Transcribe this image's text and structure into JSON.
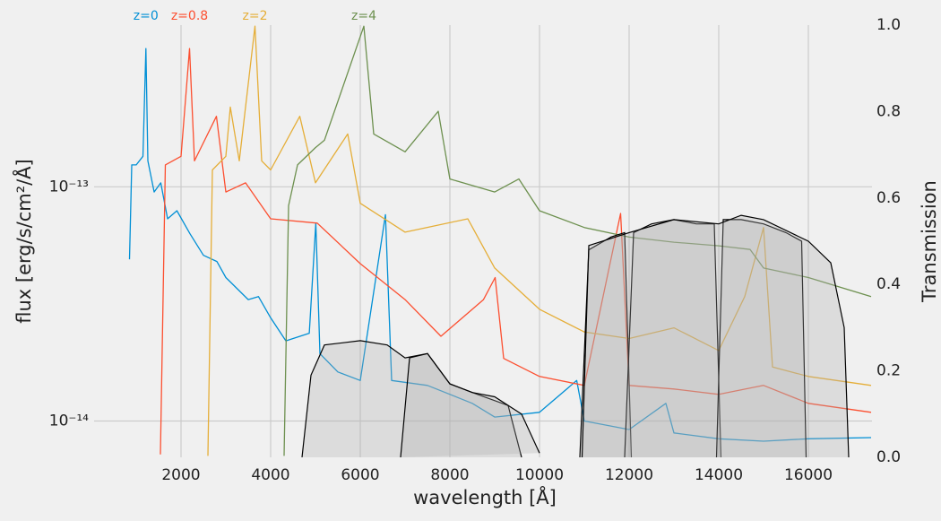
{
  "chart_data": {
    "type": "line",
    "yscale": "log",
    "grid": true,
    "xlabel": "wavelength [Å]",
    "ylabel": "flux [erg/s/cm²/Å]",
    "y2label": "Transmission",
    "xlim": [
      60,
      17420
    ],
    "ylim": [
      7e-15,
      4.9e-13
    ],
    "y2lim": [
      0,
      1
    ],
    "xticks": [
      2000,
      4000,
      6000,
      8000,
      10000,
      12000,
      14000,
      16000
    ],
    "yticks": [
      {
        "value": 1e-14,
        "label": "10⁻¹⁴"
      },
      {
        "value": 1e-13,
        "label": "10⁻¹³"
      }
    ],
    "y2ticks": [
      {
        "value": 0,
        "label": "0.0"
      },
      0.2,
      0.4,
      0.6,
      0.8,
      {
        "value": 1,
        "label": "1.0"
      }
    ],
    "series": [
      {
        "name": "z=0",
        "color": "#008fd5",
        "x": [
          850,
          900,
          1000,
          1150,
          1216,
          1260,
          1400,
          1549,
          1700,
          1909,
          2200,
          2500,
          2800,
          3000,
          3500,
          3727,
          4000,
          4340,
          4861,
          5007,
          5100,
          5500,
          6000,
          6563,
          6700,
          7500,
          8500,
          9000,
          10000,
          10830,
          11000,
          12000,
          12820,
          13000,
          14000,
          15000,
          16000,
          17400
        ],
        "values": [
          4.9e-14,
          1.24e-13,
          1.24e-13,
          1.35e-13,
          3.89e-13,
          1.29e-13,
          9.5e-14,
          1.04e-13,
          7.3e-14,
          7.9e-14,
          6.3e-14,
          5.1e-14,
          4.8e-14,
          4.1e-14,
          3.3e-14,
          3.4e-14,
          2.76e-14,
          2.2e-14,
          2.37e-14,
          7e-14,
          1.94e-14,
          1.62e-14,
          1.49e-14,
          7.6e-14,
          1.49e-14,
          1.42e-14,
          1.19e-14,
          1.04e-14,
          1.09e-14,
          1.49e-14,
          1e-14,
          9.2e-15,
          1.19e-14,
          8.9e-15,
          8.4e-15,
          8.2e-15,
          8.4e-15,
          8.5e-15
        ]
      },
      {
        "name": "z=0.8",
        "color": "#fc4f30",
        "x": [
          1540,
          1650,
          2000,
          2190,
          2300,
          2790,
          3000,
          3440,
          4000,
          5040,
          6000,
          7000,
          7800,
          8750,
          9010,
          9200,
          10000,
          11000,
          11810,
          12000,
          13000,
          14000,
          15000,
          16000,
          17400
        ],
        "values": [
          7.2e-15,
          1.24e-13,
          1.35e-13,
          3.89e-13,
          1.29e-13,
          2e-13,
          9.5e-14,
          1.04e-13,
          7.3e-14,
          7e-14,
          4.7e-14,
          3.3e-14,
          2.3e-14,
          3.3e-14,
          4.1e-14,
          1.85e-14,
          1.55e-14,
          1.42e-14,
          7.7e-14,
          1.42e-14,
          1.37e-14,
          1.3e-14,
          1.42e-14,
          1.19e-14,
          1.09e-14
        ]
      },
      {
        "name": "z=2",
        "color": "#e5ae38",
        "x": [
          2600,
          2700,
          3000,
          3100,
          3300,
          3650,
          3800,
          4000,
          4650,
          5000,
          5720,
          6000,
          7000,
          8400,
          9000,
          10000,
          11000,
          12000,
          13000,
          14000,
          14580,
          15000,
          15200,
          16000,
          17400
        ],
        "values": [
          7.1e-15,
          1.18e-13,
          1.35e-13,
          2.19e-13,
          1.29e-13,
          4.85e-13,
          1.29e-13,
          1.18e-13,
          2e-13,
          1.04e-13,
          1.68e-13,
          8.5e-14,
          6.4e-14,
          7.3e-14,
          4.5e-14,
          3e-14,
          2.4e-14,
          2.25e-14,
          2.5e-14,
          2e-14,
          3.4e-14,
          6.7e-14,
          1.7e-14,
          1.55e-14,
          1.42e-14
        ]
      },
      {
        "name": "z=4",
        "color": "#6d904f",
        "x": [
          4300,
          4400,
          4600,
          5000,
          5200,
          6080,
          6300,
          7000,
          7740,
          8000,
          9000,
          9540,
          10000,
          11000,
          12000,
          13000,
          14000,
          14700,
          15000,
          16000,
          17400
        ],
        "values": [
          7.1e-15,
          8.3e-14,
          1.24e-13,
          1.47e-13,
          1.58e-13,
          4.85e-13,
          1.68e-13,
          1.41e-13,
          2.1e-13,
          1.08e-13,
          9.5e-14,
          1.08e-13,
          7.9e-14,
          6.7e-14,
          6.1e-14,
          5.8e-14,
          5.6e-14,
          5.4e-14,
          4.5e-14,
          4.1e-14,
          3.4e-14
        ]
      },
      {
        "axis": "y2",
        "color": "#000000",
        "x": [
          4700,
          4900,
          5200,
          6000,
          6600,
          7000,
          7500,
          8000,
          8500,
          9300,
          9600
        ],
        "values": [
          0,
          0.19,
          0.26,
          0.27,
          0.26,
          0.23,
          0.24,
          0.17,
          0.15,
          0.12,
          0
        ]
      },
      {
        "axis": "y2",
        "color": "#000000",
        "x": [
          6900,
          7100,
          7500,
          8000,
          8500,
          9000,
          9600,
          10000
        ],
        "values": [
          0,
          0.23,
          0.24,
          0.17,
          0.15,
          0.14,
          0.1,
          0.01
        ]
      },
      {
        "axis": "y2",
        "color": "#000000",
        "x": [
          10900,
          11100,
          11600,
          11900,
          12050
        ],
        "values": [
          0,
          0.48,
          0.51,
          0.52,
          0
        ]
      },
      {
        "axis": "y2",
        "color": "#000000",
        "x": [
          11900,
          12100,
          12500,
          13000,
          13500,
          13900,
          14050
        ],
        "values": [
          0,
          0.52,
          0.54,
          0.55,
          0.54,
          0.54,
          0
        ]
      },
      {
        "axis": "y2",
        "color": "#000000",
        "x": [
          13950,
          14100,
          14500,
          15000,
          15500,
          15850,
          15950
        ],
        "values": [
          0,
          0.55,
          0.55,
          0.54,
          0.52,
          0.5,
          0
        ]
      },
      {
        "axis": "y2",
        "color": "#000000",
        "x": [
          10950,
          11100,
          12000,
          13000,
          14000,
          14500,
          15000,
          16000,
          16500,
          16800,
          16900
        ],
        "values": [
          0,
          0.49,
          0.52,
          0.55,
          0.54,
          0.56,
          0.55,
          0.5,
          0.45,
          0.3,
          0
        ]
      }
    ]
  }
}
